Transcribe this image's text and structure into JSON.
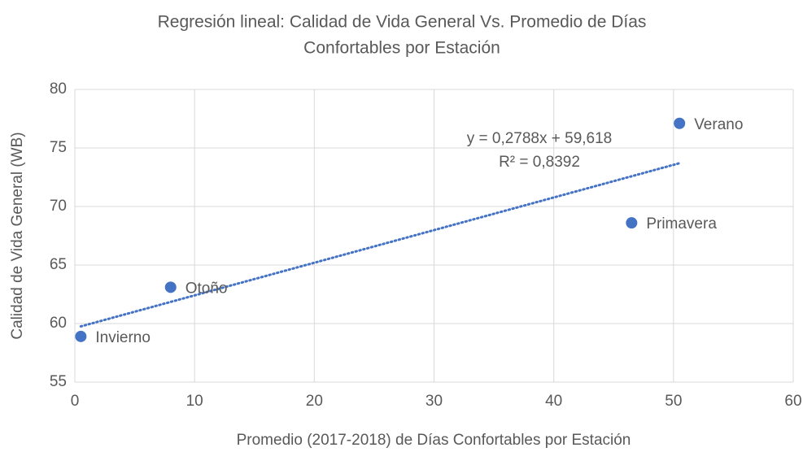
{
  "chart_data": {
    "type": "scatter",
    "title": [
      "Regresión lineal: Calidad de Vida General Vs. Promedio de Días",
      "Confortables por Estación"
    ],
    "x_label": "Promedio (2017-2018) de Días Confortables por Estación",
    "y_label": "Calidad de Vida General  (WB)",
    "series": [
      {
        "name": "Calidad de Vida General",
        "color": "#4472c4",
        "x": [
          0.5,
          8,
          46.5,
          50.5
        ],
        "values": [
          58.9,
          63.1,
          68.6,
          77.1
        ],
        "point_labels": [
          "Invierno",
          "Otoño",
          "Primavera",
          "Verano"
        ]
      }
    ],
    "trendline": {
      "slope": 0.2788,
      "intercept": 59.618,
      "equation": "y = 0,2788x + 59,618",
      "r2_label": "R² = 0,8392",
      "color": "#4472c4"
    },
    "xlim": [
      0,
      60
    ],
    "xticks": [
      0,
      10,
      20,
      30,
      40,
      50,
      60
    ],
    "ylim": [
      55,
      80
    ],
    "yticks": [
      55,
      60,
      65,
      70,
      75,
      80
    ],
    "grid": true
  }
}
